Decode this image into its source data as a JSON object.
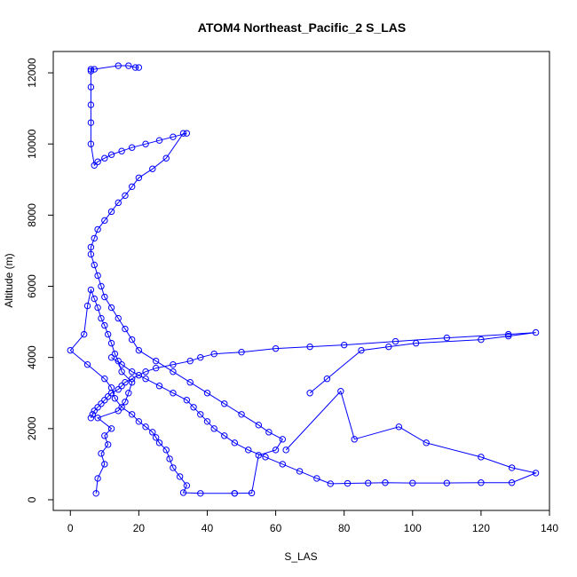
{
  "chart_data": {
    "type": "line",
    "title": "ATOM4 Northeast_Pacific_2 S_LAS",
    "xlabel": "S_LAS",
    "ylabel": "Altitude (m)",
    "xlim": [
      -5,
      140
    ],
    "ylim": [
      -300,
      12600
    ],
    "xticks": [
      0,
      20,
      40,
      60,
      80,
      100,
      120,
      140
    ],
    "yticks": [
      0,
      2000,
      4000,
      6000,
      8000,
      10000,
      12000
    ],
    "grid": false,
    "legend": "none",
    "color": "#0000ff",
    "series": [
      {
        "x": [
          7.5,
          8,
          10,
          9,
          11,
          10,
          12,
          8,
          14,
          16,
          17,
          18,
          15,
          14,
          13,
          12,
          11,
          10,
          9,
          8,
          7,
          6,
          5,
          4,
          0,
          5,
          10,
          12,
          13,
          15,
          18,
          20,
          22,
          24,
          25,
          26,
          28,
          29,
          30,
          32,
          34,
          33,
          38,
          48
        ],
        "y": [
          180,
          600,
          1000,
          1300,
          1550,
          1800,
          2000,
          2300,
          2500,
          2750,
          3000,
          3300,
          3600,
          3900,
          4100,
          4400,
          4650,
          4900,
          5100,
          5400,
          5650,
          5900,
          5450,
          4650,
          4200,
          3800,
          3400,
          3150,
          2850,
          2600,
          2400,
          2200,
          2050,
          1900,
          1750,
          1600,
          1400,
          1150,
          900,
          650,
          400,
          200,
          180,
          180
        ]
      },
      {
        "x": [
          48,
          53,
          55,
          60,
          62,
          58,
          55,
          50,
          45,
          40,
          35,
          30,
          25,
          20,
          18,
          16,
          14,
          12,
          10,
          9,
          8,
          7,
          6,
          6,
          7,
          8,
          10,
          12,
          14,
          16,
          18,
          20,
          24,
          28,
          33,
          34,
          30,
          26,
          22,
          18,
          15,
          12,
          10,
          8,
          7,
          6,
          6,
          6,
          6,
          6,
          6,
          7,
          14,
          17,
          19,
          20
        ],
        "y": [
          180,
          190,
          1250,
          1400,
          1700,
          1900,
          2100,
          2400,
          2700,
          3000,
          3300,
          3600,
          3900,
          4200,
          4500,
          4800,
          5100,
          5400,
          5700,
          6000,
          6300,
          6600,
          6900,
          7100,
          7350,
          7600,
          7850,
          8100,
          8350,
          8550,
          8800,
          9050,
          9300,
          9600,
          10300,
          10300,
          10200,
          10100,
          10000,
          9900,
          9800,
          9700,
          9600,
          9500,
          9400,
          10000,
          10600,
          11100,
          11600,
          12050,
          12100,
          12100,
          12200,
          12200,
          12150,
          12150
        ]
      },
      {
        "x": [
          63,
          79,
          83,
          96,
          104,
          120,
          129,
          136,
          129,
          120,
          110,
          100,
          92,
          87,
          81,
          76,
          72,
          67,
          62,
          57,
          52,
          48,
          45,
          42,
          40,
          38,
          36,
          34,
          30,
          26,
          22,
          18,
          15,
          12
        ],
        "y": [
          1400,
          3050,
          1700,
          2050,
          1600,
          1200,
          900,
          750,
          480,
          480,
          470,
          470,
          480,
          470,
          460,
          450,
          600,
          800,
          1000,
          1200,
          1400,
          1600,
          1800,
          2000,
          2200,
          2400,
          2600,
          2800,
          3000,
          3200,
          3400,
          3600,
          3800,
          4000
        ]
      },
      {
        "x": [
          70,
          75,
          85,
          93,
          101,
          120,
          128,
          136,
          128,
          110,
          95,
          80,
          70,
          60,
          50,
          42,
          38,
          35,
          30,
          25,
          22,
          20,
          18,
          16,
          15,
          14,
          12,
          11,
          10,
          9,
          8,
          7,
          6.5,
          6
        ],
        "y": [
          3000,
          3400,
          4200,
          4300,
          4400,
          4500,
          4600,
          4700,
          4650,
          4550,
          4450,
          4350,
          4300,
          4250,
          4150,
          4100,
          4000,
          3900,
          3800,
          3700,
          3600,
          3500,
          3400,
          3300,
          3200,
          3100,
          3000,
          2900,
          2800,
          2700,
          2600,
          2500,
          2400,
          2300
        ]
      }
    ]
  }
}
